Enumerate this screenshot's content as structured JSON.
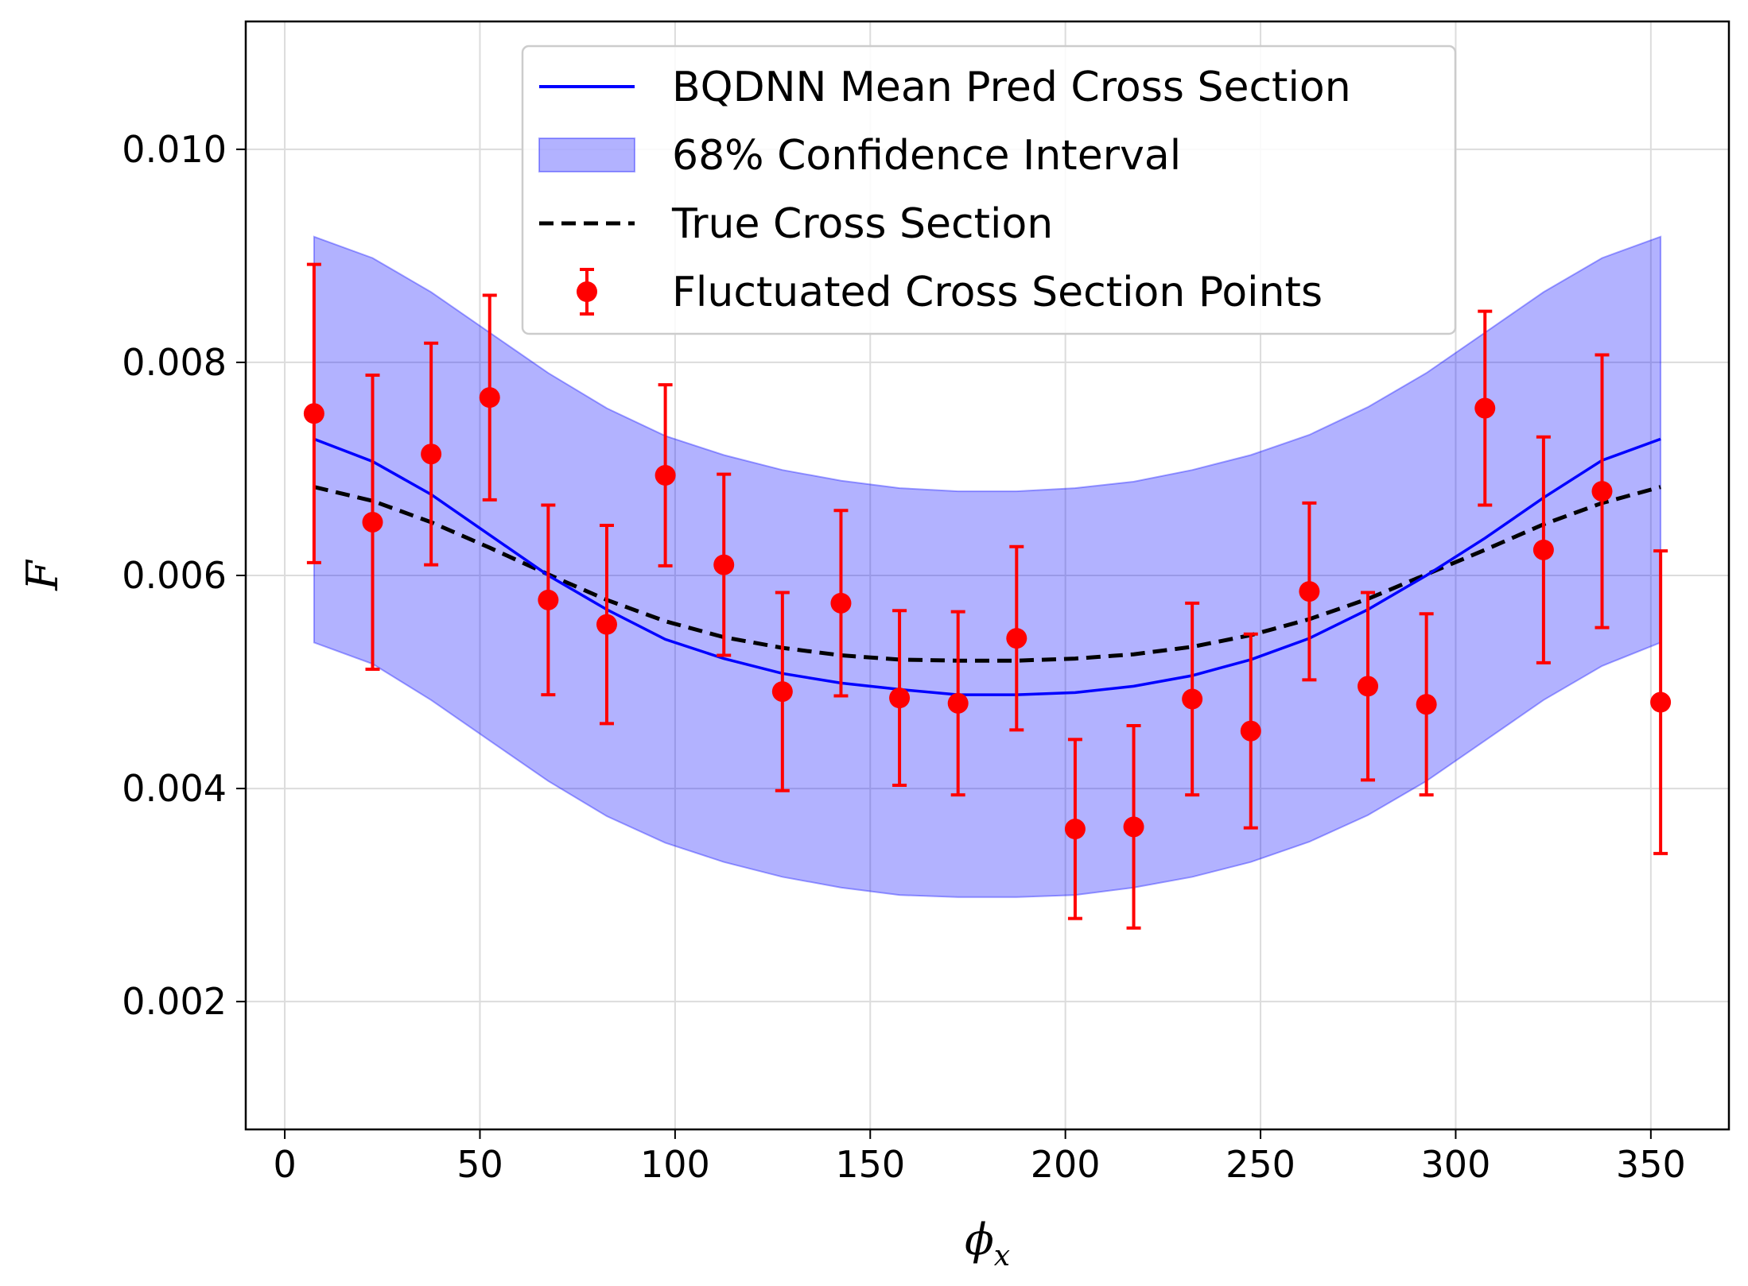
{
  "chart_data": {
    "type": "line",
    "title": "",
    "xlabel": {
      "base": "ϕ",
      "sub": "x"
    },
    "ylabel": "F",
    "xlim": [
      -10,
      370
    ],
    "ylim": [
      0.0008,
      0.0112
    ],
    "xticks": [
      0,
      50,
      100,
      150,
      200,
      250,
      300,
      350
    ],
    "xtick_labels": [
      "0",
      "50",
      "100",
      "150",
      "200",
      "250",
      "300",
      "350"
    ],
    "yticks": [
      0.002,
      0.004,
      0.006,
      0.008,
      0.01
    ],
    "ytick_labels": [
      "0.002",
      "0.004",
      "0.006",
      "0.008",
      "0.010"
    ],
    "grid": true,
    "legend_position": "top-center",
    "colors": {
      "mean": "#0000ff",
      "band": "#0000ff",
      "true": "#000000",
      "points": "#ff0000"
    },
    "x": [
      7.5,
      22.5,
      37.5,
      52.5,
      67.5,
      82.5,
      97.5,
      112.5,
      127.5,
      142.5,
      157.5,
      172.5,
      187.5,
      202.5,
      217.5,
      232.5,
      247.5,
      262.5,
      277.5,
      292.5,
      307.5,
      322.5,
      337.5,
      352.5
    ],
    "series": [
      {
        "name": "BQDNN Mean Pred Cross Section",
        "kind": "line",
        "values": [
          0.00728,
          0.00707,
          0.00676,
          0.00638,
          0.006,
          0.00568,
          0.0054,
          0.00522,
          0.00508,
          0.00499,
          0.00493,
          0.00488,
          0.00488,
          0.0049,
          0.00496,
          0.00506,
          0.00521,
          0.00541,
          0.00568,
          0.006,
          0.00635,
          0.00673,
          0.00708,
          0.00728
        ]
      },
      {
        "name": "68% Confidence Interval",
        "kind": "band",
        "lower": [
          0.00537,
          0.00517,
          0.00483,
          0.00445,
          0.00407,
          0.00374,
          0.00349,
          0.00331,
          0.00317,
          0.00307,
          0.003,
          0.00298,
          0.00298,
          0.003,
          0.00307,
          0.00317,
          0.00331,
          0.0035,
          0.00375,
          0.00407,
          0.00445,
          0.00483,
          0.00515,
          0.00537
        ],
        "upper": [
          0.00918,
          0.00898,
          0.00866,
          0.00828,
          0.0079,
          0.00757,
          0.00731,
          0.00713,
          0.00699,
          0.00689,
          0.00682,
          0.00679,
          0.00679,
          0.00682,
          0.00688,
          0.00699,
          0.00713,
          0.00732,
          0.00758,
          0.0079,
          0.00828,
          0.00866,
          0.00898,
          0.00918
        ]
      },
      {
        "name": "True Cross Section",
        "kind": "dashed-line",
        "values": [
          0.00683,
          0.0067,
          0.0065,
          0.00626,
          0.00601,
          0.00577,
          0.00557,
          0.00542,
          0.00532,
          0.00525,
          0.00521,
          0.0052,
          0.0052,
          0.00522,
          0.00526,
          0.00533,
          0.00544,
          0.00559,
          0.00578,
          0.00601,
          0.00624,
          0.00648,
          0.00668,
          0.00683
        ]
      },
      {
        "name": "Fluctuated Cross Section Points",
        "kind": "errorbar",
        "values": [
          0.00752,
          0.0065,
          0.00714,
          0.00767,
          0.00577,
          0.00554,
          0.00694,
          0.0061,
          0.00491,
          0.00574,
          0.00485,
          0.0048,
          0.00541,
          0.00362,
          0.00364,
          0.00484,
          0.00454,
          0.00585,
          0.00496,
          0.00479,
          0.00757,
          0.00624,
          0.00679,
          0.00481
        ],
        "errors": [
          0.0014,
          0.00138,
          0.00104,
          0.00096,
          0.00089,
          0.00093,
          0.00085,
          0.00085,
          0.00093,
          0.00087,
          0.00082,
          0.00086,
          0.00086,
          0.00084,
          0.00095,
          0.0009,
          0.00091,
          0.00083,
          0.00088,
          0.00085,
          0.00091,
          0.00106,
          0.00128,
          0.00142
        ]
      }
    ],
    "legend": [
      {
        "label": "BQDNN Mean Pred Cross Section",
        "marker": "line"
      },
      {
        "label": "68% Confidence Interval",
        "marker": "patch"
      },
      {
        "label": "True Cross Section",
        "marker": "dashed"
      },
      {
        "label": "Fluctuated Cross Section Points",
        "marker": "errorbar"
      }
    ]
  }
}
